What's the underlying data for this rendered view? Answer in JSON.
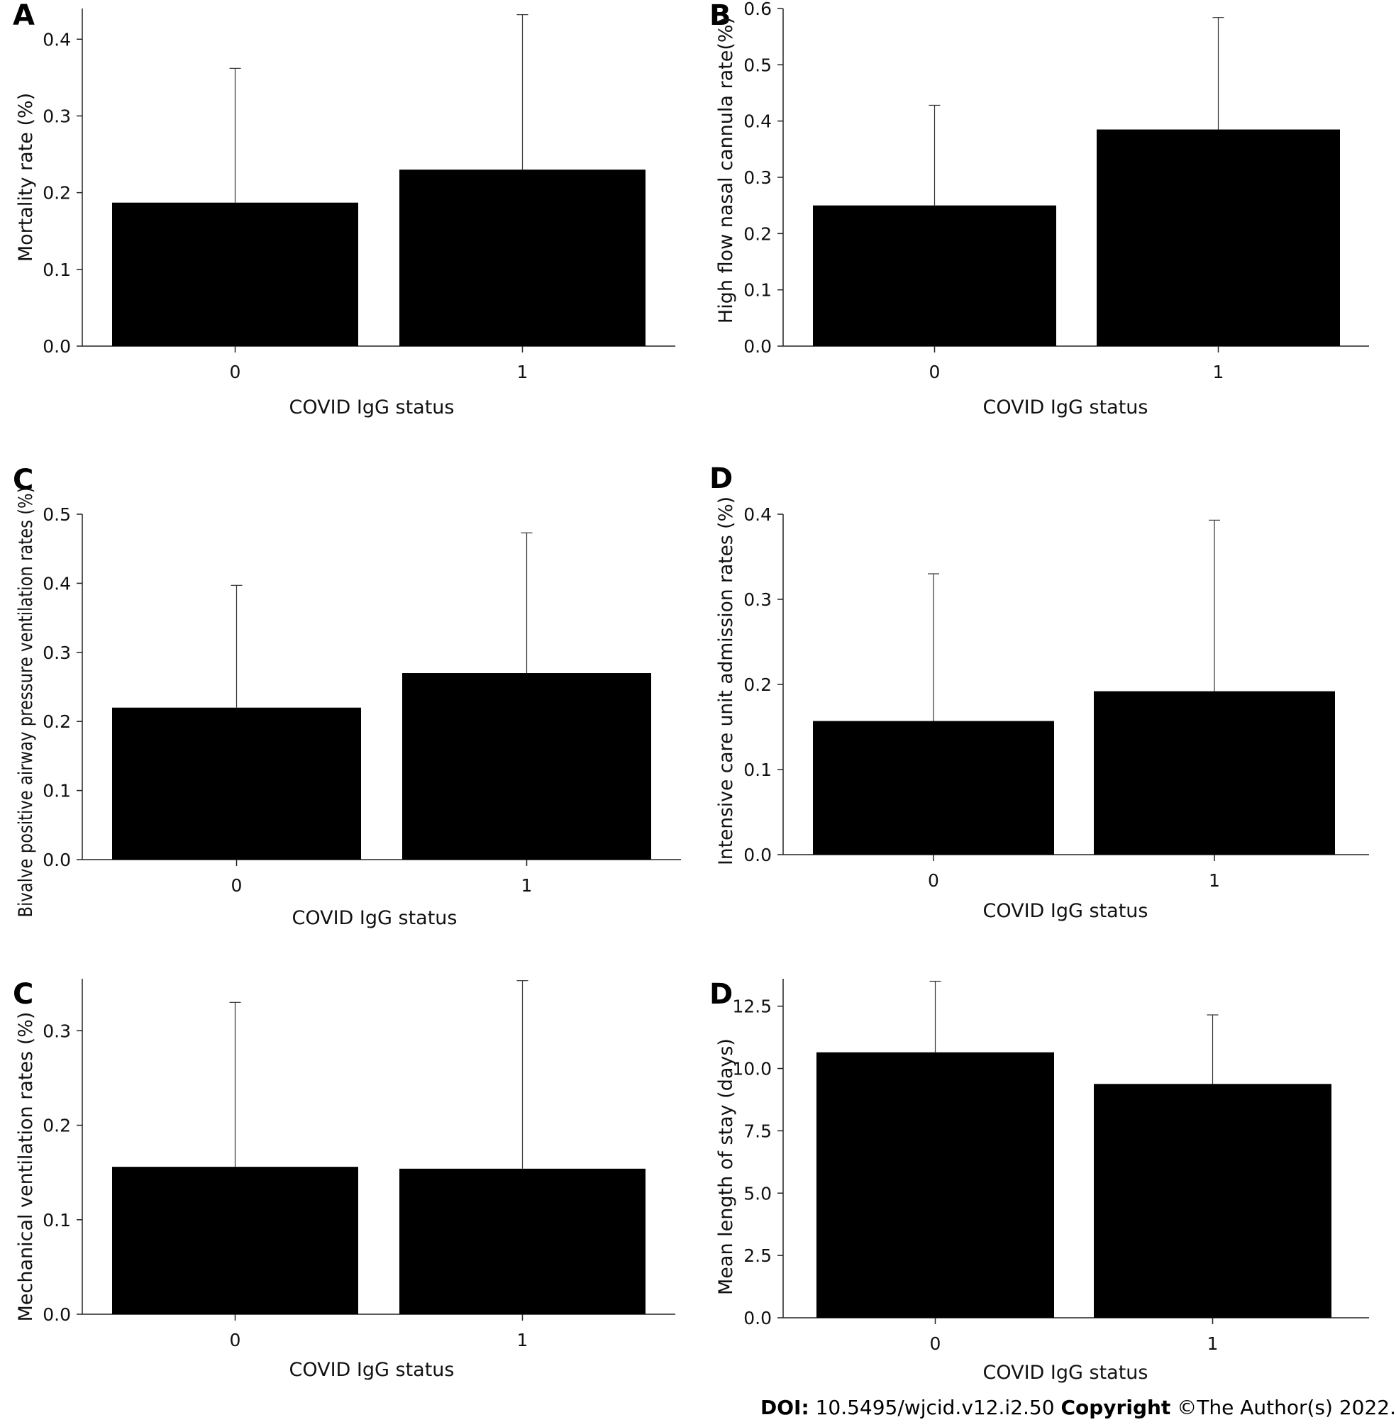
{
  "chart_data": [
    {
      "type": "bar",
      "panel_label": "A",
      "categories": [
        "0",
        "1"
      ],
      "values": [
        0.187,
        0.23
      ],
      "error_upper": [
        0.362,
        0.432
      ],
      "xlabel": "COVID IgG status",
      "ylabel": "Mortality rate (%)",
      "ylim": [
        0,
        0.44
      ],
      "yticks": [
        "0.0",
        "0.1",
        "0.2",
        "0.3",
        "0.4"
      ]
    },
    {
      "type": "bar",
      "panel_label": "B",
      "categories": [
        "0",
        "1"
      ],
      "values": [
        0.25,
        0.385
      ],
      "error_upper": [
        0.428,
        0.584
      ],
      "xlabel": "COVID IgG status",
      "ylabel": "High flow nasal cannula rate(%)",
      "ylim": [
        0,
        0.6
      ],
      "yticks": [
        "0.0",
        "0.1",
        "0.2",
        "0.3",
        "0.4",
        "0.5",
        "0.6"
      ]
    },
    {
      "type": "bar",
      "panel_label": "C",
      "categories": [
        "0",
        "1"
      ],
      "values": [
        0.22,
        0.27
      ],
      "error_upper": [
        0.397,
        0.473
      ],
      "xlabel": "COVID IgG status",
      "ylabel": "Bivalve positive airway pressure ventilation rates (%)",
      "ylim": [
        0,
        0.5
      ],
      "yticks": [
        "0.0",
        "0.1",
        "0.2",
        "0.3",
        "0.4",
        "0.5"
      ]
    },
    {
      "type": "bar",
      "panel_label": "D",
      "categories": [
        "0",
        "1"
      ],
      "values": [
        0.157,
        0.192
      ],
      "error_upper": [
        0.33,
        0.393
      ],
      "xlabel": "COVID IgG status",
      "ylabel": "Intensive care unit admission rates (%)",
      "ylim": [
        0,
        0.4
      ],
      "yticks": [
        "0.0",
        "0.1",
        "0.2",
        "0.3",
        "0.4"
      ]
    },
    {
      "type": "bar",
      "panel_label": "C",
      "categories": [
        "0",
        "1"
      ],
      "values": [
        0.156,
        0.154
      ],
      "error_upper": [
        0.33,
        0.353
      ],
      "xlabel": "COVID IgG status",
      "ylabel": "Mechanical ventilation rates (%)",
      "ylim": [
        0,
        0.355
      ],
      "yticks": [
        "0.0",
        "0.1",
        "0.2",
        "0.3"
      ]
    },
    {
      "type": "bar",
      "panel_label": "D",
      "categories": [
        "0",
        "1"
      ],
      "values": [
        10.65,
        9.38
      ],
      "error_upper": [
        13.5,
        12.15
      ],
      "xlabel": "COVID IgG status",
      "ylabel": "Mean length of stay (days)",
      "ylim": [
        0,
        13.6
      ],
      "yticks": [
        "0.0",
        "2.5",
        "5.0",
        "7.5",
        "10.0",
        "12.5"
      ]
    }
  ],
  "footer": {
    "doi_label": "DOI:",
    "doi_value": "10.5495/wjcid.v12.i2.50",
    "copyright_label": "Copyright",
    "copyright_value": "©The Author(s) 2022."
  },
  "colors": {
    "bar": "#000000",
    "axis": "#222222"
  }
}
